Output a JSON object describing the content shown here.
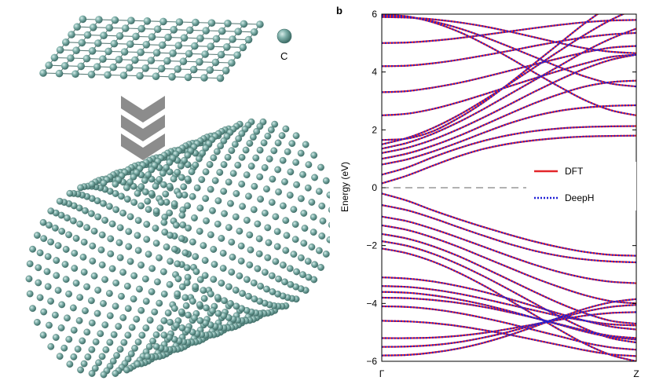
{
  "illustration": {
    "atom_label": "C",
    "atom_color": "#6f9e98",
    "arrow_color": "#8c8c8c"
  },
  "chart_data": {
    "type": "line",
    "panel_label": "b",
    "title": "",
    "xlabel": "",
    "ylabel": "Energy (eV)",
    "x_tick_labels": [
      "Γ",
      "Z"
    ],
    "y_ticks": [
      -6,
      -4,
      -2,
      0,
      2,
      4,
      6
    ],
    "y_tick_labels": [
      "−6",
      "−4",
      "−2",
      "0",
      "2",
      "4",
      "6"
    ],
    "xlim": [
      0,
      1
    ],
    "ylim": [
      -6,
      6
    ],
    "fermi_level": 0,
    "grid": false,
    "legend": {
      "placement": "right",
      "entries": [
        {
          "name": "DFT",
          "color": "#e3262a",
          "style": "solid"
        },
        {
          "name": "DeepH",
          "color": "#1f1fd6",
          "style": "dotted"
        }
      ]
    },
    "series": [
      {
        "name": "DFT",
        "color": "#e3262a"
      },
      {
        "name": "DeepH",
        "color": "#1f1fd6"
      }
    ],
    "bands": {
      "x": [
        0,
        0.1,
        0.2,
        0.3,
        0.4,
        0.5,
        0.6,
        0.7,
        0.8,
        0.9,
        1
      ],
      "conduction": [
        [
          0.15,
          0.42,
          0.76,
          1.08,
          1.34,
          1.52,
          1.64,
          1.72,
          1.77,
          1.79,
          1.8
        ],
        [
          0.45,
          0.7,
          1.05,
          1.36,
          1.62,
          1.82,
          1.96,
          2.05,
          2.1,
          2.12,
          2.13
        ],
        [
          0.8,
          0.98,
          1.25,
          1.56,
          1.9,
          2.22,
          2.48,
          2.66,
          2.77,
          2.83,
          2.85
        ],
        [
          1.0,
          1.18,
          1.45,
          1.78,
          2.16,
          2.55,
          2.92,
          3.24,
          3.5,
          3.65,
          3.7
        ],
        [
          1.2,
          1.38,
          1.66,
          2.02,
          2.43,
          2.87,
          3.32,
          3.74,
          4.12,
          4.42,
          4.6
        ],
        [
          1.35,
          1.55,
          1.86,
          2.26,
          2.72,
          3.22,
          3.72,
          4.22,
          4.72,
          5.15,
          5.5
        ],
        [
          1.5,
          1.72,
          2.06,
          2.5,
          3.02,
          3.58,
          4.16,
          4.74,
          5.3,
          5.8,
          6.2
        ],
        [
          1.65,
          1.7,
          1.95,
          2.4,
          2.95,
          3.6,
          4.3,
          5.0,
          5.7,
          6.3,
          6.8
        ],
        [
          2.5,
          2.56,
          2.72,
          2.95,
          3.22,
          3.5,
          3.78,
          4.05,
          4.3,
          4.52,
          4.6
        ],
        [
          3.3,
          3.34,
          3.46,
          3.62,
          3.82,
          4.04,
          4.26,
          4.48,
          4.68,
          4.84,
          4.9
        ],
        [
          4.2,
          4.22,
          4.3,
          4.42,
          4.57,
          4.73,
          4.9,
          5.06,
          5.2,
          5.3,
          5.35
        ],
        [
          5.0,
          5.02,
          5.08,
          5.17,
          5.28,
          5.4,
          5.52,
          5.63,
          5.72,
          5.78,
          5.8
        ],
        [
          5.9,
          5.88,
          5.82,
          5.72,
          5.58,
          5.4,
          5.2,
          5.0,
          4.82,
          4.7,
          4.65
        ],
        [
          5.95,
          5.9,
          5.75,
          5.52,
          5.22,
          4.88,
          4.52,
          4.16,
          3.84,
          3.6,
          3.5
        ],
        [
          5.98,
          5.92,
          5.72,
          5.4,
          4.98,
          4.5,
          3.98,
          3.48,
          3.02,
          2.68,
          2.5
        ]
      ],
      "valence": [
        [
          -0.2,
          -0.45,
          -0.78,
          -1.08,
          -1.36,
          -1.62,
          -1.86,
          -2.06,
          -2.22,
          -2.32,
          -2.35
        ],
        [
          -0.6,
          -0.78,
          -1.05,
          -1.36,
          -1.66,
          -1.94,
          -2.18,
          -2.36,
          -2.48,
          -2.55,
          -2.58
        ],
        [
          -1.0,
          -1.16,
          -1.42,
          -1.72,
          -2.04,
          -2.36,
          -2.66,
          -2.92,
          -3.12,
          -3.25,
          -3.3
        ],
        [
          -1.3,
          -1.46,
          -1.72,
          -2.04,
          -2.4,
          -2.76,
          -3.12,
          -3.44,
          -3.72,
          -3.92,
          -4.0
        ],
        [
          -1.6,
          -1.76,
          -2.02,
          -2.36,
          -2.76,
          -3.18,
          -3.6,
          -4.0,
          -4.34,
          -4.6,
          -4.7
        ],
        [
          -1.85,
          -2.01,
          -2.28,
          -2.64,
          -3.06,
          -3.52,
          -4.0,
          -4.46,
          -4.88,
          -5.2,
          -5.35
        ],
        [
          -2.1,
          -2.27,
          -2.55,
          -2.93,
          -3.38,
          -3.88,
          -4.4,
          -4.92,
          -5.4,
          -5.78,
          -6.0
        ],
        [
          -3.1,
          -3.14,
          -3.24,
          -3.4,
          -3.6,
          -3.84,
          -4.1,
          -4.36,
          -4.6,
          -4.8,
          -4.9
        ],
        [
          -3.6,
          -3.63,
          -3.72,
          -3.86,
          -4.04,
          -4.26,
          -4.5,
          -4.74,
          -4.98,
          -5.16,
          -5.25
        ],
        [
          -4.1,
          -4.12,
          -4.2,
          -4.33,
          -4.5,
          -4.7,
          -4.92,
          -5.14,
          -5.36,
          -5.52,
          -5.6
        ],
        [
          -4.6,
          -4.62,
          -4.68,
          -4.78,
          -4.92,
          -5.08,
          -5.26,
          -5.44,
          -5.62,
          -5.76,
          -5.82
        ],
        [
          -5.2,
          -5.2,
          -5.18,
          -5.12,
          -5.02,
          -4.88,
          -4.72,
          -4.56,
          -4.42,
          -4.33,
          -4.3
        ],
        [
          -5.5,
          -5.49,
          -5.44,
          -5.34,
          -5.18,
          -4.98,
          -4.74,
          -4.5,
          -4.28,
          -4.12,
          -4.05
        ],
        [
          -5.8,
          -5.78,
          -5.7,
          -5.56,
          -5.36,
          -5.1,
          -4.8,
          -4.48,
          -4.18,
          -3.96,
          -3.85
        ],
        [
          -3.8,
          -3.82,
          -3.88,
          -3.98,
          -4.12,
          -4.3,
          -4.5,
          -4.72,
          -4.94,
          -5.12,
          -5.2
        ],
        [
          -3.4,
          -3.43,
          -3.52,
          -3.66,
          -3.84,
          -4.04,
          -4.24,
          -4.44,
          -4.6,
          -4.72,
          -4.76
        ]
      ]
    }
  }
}
